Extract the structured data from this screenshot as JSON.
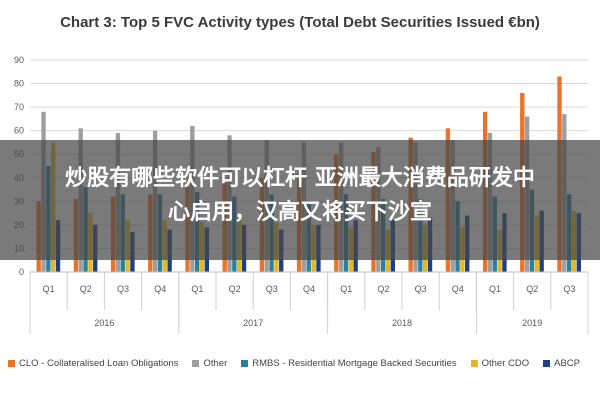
{
  "chart_data": {
    "type": "bar",
    "title": "Chart 3: Top 5 FVC Activity types (Total Debt Securities Issued €bn)",
    "ylim": [
      0,
      90
    ],
    "yticks": [
      0,
      10,
      20,
      30,
      40,
      50,
      60,
      70,
      80,
      90
    ],
    "grid": true,
    "legend_position": "bottom",
    "categories": [
      "Q1",
      "Q2",
      "Q3",
      "Q4",
      "Q1",
      "Q2",
      "Q3",
      "Q4",
      "Q1",
      "Q2",
      "Q3",
      "Q4",
      "Q1",
      "Q2",
      "Q3"
    ],
    "groups": [
      {
        "label": "2016",
        "count": 4
      },
      {
        "label": "2017",
        "count": 4
      },
      {
        "label": "2018",
        "count": 4
      },
      {
        "label": "2019",
        "count": 3
      }
    ],
    "series": [
      {
        "name": "CLO - Collateralised Loan Obligations",
        "color": "#e8732a",
        "values": [
          30,
          31,
          32,
          33,
          36,
          38,
          40,
          42,
          50,
          51,
          57,
          61,
          68,
          76,
          83
        ]
      },
      {
        "name": "Other",
        "color": "#9e9e9e",
        "values": [
          68,
          61,
          59,
          60,
          62,
          58,
          56,
          55,
          55,
          53,
          55,
          56,
          59,
          66,
          67
        ]
      },
      {
        "name": "RMBS - Residential Mortgage Backed Securities",
        "color": "#2d7f9e",
        "values": [
          45,
          36,
          33,
          33,
          34,
          32,
          33,
          30,
          33,
          31,
          31,
          30,
          32,
          35,
          33
        ]
      },
      {
        "name": "Other CDO",
        "color": "#e3b826",
        "values": [
          55,
          25,
          22,
          22,
          21,
          22,
          21,
          20,
          19,
          18,
          20,
          19,
          18,
          24,
          26
        ]
      },
      {
        "name": "ABCP",
        "color": "#1f3f85",
        "values": [
          22,
          20,
          17,
          18,
          19,
          20,
          18,
          20,
          22,
          22,
          23,
          24,
          25,
          26,
          25
        ]
      }
    ]
  },
  "overlay": {
    "line1": "炒股有哪些软件可以杠杆 亚洲最大消费品研发中",
    "line2": "心启用，汉高又将买下沙宣"
  }
}
